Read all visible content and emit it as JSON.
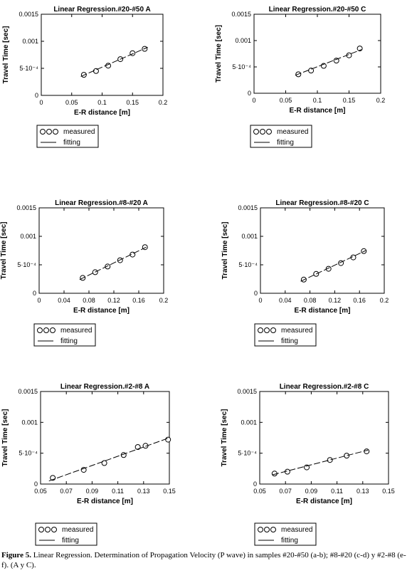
{
  "chart_data": [
    {
      "type": "scatter",
      "title": "Linear Regression.#20-#50 A",
      "xlabel": "E-R distance [m]",
      "ylabel": "Travel Time [sec]",
      "xlim": [
        0,
        0.2
      ],
      "ylim": [
        0,
        0.0015
      ],
      "x_ticks": [
        "0",
        "0.05",
        "0.1",
        "0.15",
        "0.2"
      ],
      "y_ticks": [
        "0",
        "5·10⁻⁴",
        "0.001",
        "0.0015"
      ],
      "legend": [
        "measured",
        "fitting"
      ],
      "legend_placement": "below",
      "grid": false,
      "series": [
        {
          "name": "measured",
          "kind": "markers",
          "x": [
            0.07,
            0.09,
            0.11,
            0.13,
            0.15,
            0.17
          ],
          "y": [
            0.00038,
            0.00045,
            0.00055,
            0.00067,
            0.00078,
            0.00086
          ]
        },
        {
          "name": "fitting",
          "kind": "line",
          "x": [
            0.065,
            0.175
          ],
          "y": [
            0.00035,
            0.00089
          ]
        }
      ]
    },
    {
      "type": "scatter",
      "title": "Linear Regression.#20-#50 C",
      "xlabel": "E-R distance [m]",
      "ylabel": "Travel Time [sec]",
      "xlim": [
        0,
        0.2
      ],
      "ylim": [
        0,
        0.0015
      ],
      "x_ticks": [
        "0",
        "0.05",
        "0.1",
        "0.15",
        "0.2"
      ],
      "y_ticks": [
        "0",
        "5·10⁻⁴",
        "0.001",
        "0.0015"
      ],
      "legend": [
        "measured",
        "fitting"
      ],
      "legend_placement": "below",
      "grid": false,
      "series": [
        {
          "name": "measured",
          "kind": "markers",
          "x": [
            0.07,
            0.09,
            0.11,
            0.13,
            0.15,
            0.167
          ],
          "y": [
            0.00036,
            0.00043,
            0.00052,
            0.00062,
            0.00072,
            0.00085
          ]
        },
        {
          "name": "fitting",
          "kind": "line",
          "x": [
            0.065,
            0.17
          ],
          "y": [
            0.00034,
            0.00083
          ]
        }
      ]
    },
    {
      "type": "scatter",
      "title": "Linear Regression.#8-#20 A",
      "xlabel": "E-R distance [m]",
      "ylabel": "Travel Time [sec]",
      "xlim": [
        0,
        0.2
      ],
      "ylim": [
        0,
        0.0015
      ],
      "x_ticks": [
        "0",
        "0.04",
        "0.08",
        "0.12",
        "0.16",
        "0.2"
      ],
      "y_ticks": [
        "0",
        "5·10⁻⁴",
        "0.001",
        "0.0015"
      ],
      "legend": [
        "measured",
        "fitting"
      ],
      "legend_placement": "below",
      "grid": false,
      "series": [
        {
          "name": "measured",
          "kind": "markers",
          "x": [
            0.07,
            0.09,
            0.11,
            0.13,
            0.15,
            0.17
          ],
          "y": [
            0.00027,
            0.00037,
            0.00047,
            0.00058,
            0.00068,
            0.00081
          ]
        },
        {
          "name": "fitting",
          "kind": "line",
          "x": [
            0.065,
            0.172
          ],
          "y": [
            0.00024,
            0.00081
          ]
        }
      ]
    },
    {
      "type": "scatter",
      "title": "Linear Regression.#8-#20 C",
      "xlabel": "E-R distance [m]",
      "ylabel": "Travel Time [sec]",
      "xlim": [
        0,
        0.2
      ],
      "ylim": [
        0,
        0.0015
      ],
      "x_ticks": [
        "0",
        "0.04",
        "0.08",
        "0.12",
        "0.16",
        "0.2"
      ],
      "y_ticks": [
        "0",
        "5·10⁻⁴",
        "0.001",
        "0.0015"
      ],
      "legend": [
        "measured",
        "fitting"
      ],
      "legend_placement": "below",
      "grid": false,
      "series": [
        {
          "name": "measured",
          "kind": "markers",
          "x": [
            0.07,
            0.09,
            0.11,
            0.13,
            0.15,
            0.167
          ],
          "y": [
            0.00024,
            0.00034,
            0.00043,
            0.00053,
            0.00063,
            0.00074
          ]
        },
        {
          "name": "fitting",
          "kind": "line",
          "x": [
            0.065,
            0.17
          ],
          "y": [
            0.00021,
            0.00075
          ]
        }
      ]
    },
    {
      "type": "scatter",
      "title": "Linear Regression.#2-#8 A",
      "xlabel": "E-R distance [m]",
      "ylabel": "Travel Time [sec]",
      "xlim": [
        0.05,
        0.15
      ],
      "ylim": [
        0,
        0.0015
      ],
      "x_ticks": [
        "0.05",
        "0.07",
        "0.09",
        "0.11",
        "0.13",
        "0.15"
      ],
      "y_ticks": [
        "0",
        "5·10⁻⁴",
        "0.001",
        "0.0015"
      ],
      "legend": [
        "measured",
        "fitting"
      ],
      "legend_placement": "below",
      "grid": false,
      "series": [
        {
          "name": "measured",
          "kind": "markers",
          "x": [
            0.0595,
            0.0835,
            0.0995,
            0.1145,
            0.1255,
            0.1315,
            0.149
          ],
          "y": [
            0.0001,
            0.00023,
            0.00034,
            0.00047,
            0.0006,
            0.00062,
            0.00072
          ]
        },
        {
          "name": "fitting",
          "kind": "line",
          "x": [
            0.0565,
            0.15
          ],
          "y": [
            5e-05,
            0.00075
          ]
        }
      ]
    },
    {
      "type": "scatter",
      "title": "Linear Regression.#2-#8 C",
      "xlabel": "E-R distance [m]",
      "ylabel": "Travel Time [sec]",
      "xlim": [
        0.05,
        0.15
      ],
      "ylim": [
        0,
        0.0015
      ],
      "x_ticks": [
        "0.05",
        "0.07",
        "0.09",
        "0.11",
        "0.13",
        "0.15"
      ],
      "y_ticks": [
        "0",
        "5·10⁻⁴",
        "0.001",
        "0.0015"
      ],
      "legend": [
        "measured",
        "fitting"
      ],
      "legend_placement": "below",
      "grid": false,
      "series": [
        {
          "name": "measured",
          "kind": "markers",
          "x": [
            0.0615,
            0.0715,
            0.0865,
            0.1045,
            0.1175,
            0.133
          ],
          "y": [
            0.00017,
            0.0002,
            0.00027,
            0.00039,
            0.00046,
            0.00053
          ]
        },
        {
          "name": "fitting",
          "kind": "line",
          "x": [
            0.06,
            0.134
          ],
          "y": [
            0.00015,
            0.00055
          ]
        }
      ]
    }
  ],
  "caption": {
    "label": "Figure 5.",
    "text": " Linear Regression. Determination of Propagation Velocity (P wave) in samples  #20-#50 (a-b); #8-#20 (c-d) y #2-#8 (e-f). (A y C)."
  }
}
